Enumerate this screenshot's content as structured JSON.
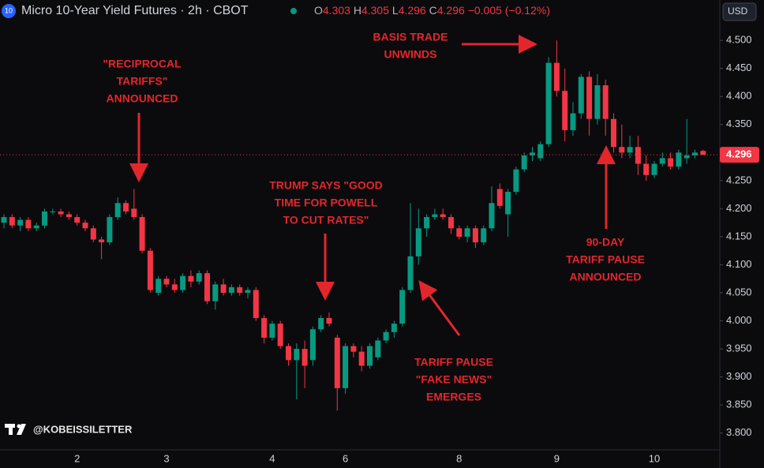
{
  "legend": {
    "symbol_badge": "10",
    "open_key": "O",
    "high_key": "H",
    "low_key": "L",
    "close_key": "C",
    "change": "−0.005 (−0.12%)",
    "currency": "USD",
    "watermark": "@KOBEISSILETTER"
  },
  "annotations": [
    {
      "lines": [
        "\"RECIPROCAL",
        "TARIFFS\"",
        "ANNOUNCED"
      ]
    },
    {
      "lines": [
        "BASIS TRADE",
        "UNWINDS"
      ]
    },
    {
      "lines": [
        "TRUMP SAYS \"GOOD",
        "TIME FOR POWELL",
        "TO CUT RATES\""
      ]
    },
    {
      "lines": [
        "TARIFF PAUSE",
        "\"FAKE NEWS\"",
        "EMERGES"
      ]
    },
    {
      "lines": [
        "90-DAY",
        "TARIFF PAUSE",
        "ANNOUNCED"
      ]
    }
  ],
  "chart_data": {
    "type": "candlestick",
    "title": "Micro 10-Year Yield Futures · 2h · CBOT",
    "categories": [
      null,
      null,
      null,
      null,
      null,
      null,
      null,
      null,
      null,
      "2",
      null,
      null,
      null,
      null,
      null,
      null,
      null,
      null,
      null,
      null,
      "3",
      null,
      null,
      null,
      null,
      null,
      null,
      null,
      null,
      null,
      null,
      null,
      null,
      "4",
      null,
      null,
      null,
      null,
      null,
      null,
      null,
      null,
      "6",
      null,
      null,
      null,
      null,
      null,
      null,
      null,
      null,
      null,
      null,
      null,
      null,
      null,
      "8",
      null,
      null,
      null,
      null,
      null,
      null,
      null,
      null,
      null,
      null,
      null,
      "9",
      null,
      null,
      null,
      null,
      null,
      null,
      null,
      null,
      null,
      null,
      null,
      "10",
      null,
      null,
      null,
      null,
      null,
      null
    ],
    "open": [
      4.175,
      4.185,
      4.17,
      4.18,
      4.165,
      4.17,
      4.195,
      4.195,
      4.19,
      4.185,
      4.175,
      4.165,
      4.145,
      4.14,
      4.185,
      4.21,
      4.2,
      4.185,
      4.125,
      4.05,
      4.075,
      4.065,
      4.055,
      4.08,
      4.07,
      4.085,
      4.035,
      4.065,
      4.05,
      4.06,
      4.05,
      4.055,
      4.005,
      3.97,
      3.995,
      3.955,
      3.93,
      3.95,
      3.93,
      3.985,
      4.005,
      3.97,
      3.88,
      3.955,
      3.945,
      3.92,
      3.935,
      3.965,
      3.98,
      3.995,
      4.055,
      4.115,
      4.165,
      4.185,
      4.19,
      4.185,
      4.165,
      4.15,
      4.165,
      4.14,
      4.165,
      4.235,
      4.19,
      4.23,
      4.27,
      4.295,
      4.29,
      4.315,
      4.46,
      4.41,
      4.34,
      4.37,
      4.435,
      4.36,
      4.42,
      4.36,
      4.31,
      4.3,
      4.31,
      4.28,
      4.26,
      4.28,
      4.29,
      4.275,
      4.29,
      4.295,
      4.303
    ],
    "high": [
      4.19,
      4.19,
      4.185,
      4.185,
      4.175,
      4.2,
      4.2,
      4.2,
      4.195,
      4.19,
      4.18,
      4.17,
      4.15,
      4.19,
      4.22,
      4.215,
      4.235,
      4.19,
      4.13,
      4.08,
      4.08,
      4.075,
      4.085,
      4.09,
      4.09,
      4.09,
      4.07,
      4.075,
      4.065,
      4.065,
      4.06,
      4.06,
      4.01,
      4.0,
      4.0,
      3.96,
      3.96,
      3.965,
      3.99,
      4.01,
      4.015,
      3.975,
      3.96,
      3.96,
      3.955,
      3.96,
      3.97,
      3.985,
      4.0,
      4.06,
      4.21,
      4.2,
      4.19,
      4.2,
      4.2,
      4.19,
      4.17,
      4.17,
      4.17,
      4.17,
      4.24,
      4.245,
      4.235,
      4.275,
      4.3,
      4.31,
      4.32,
      4.47,
      4.5,
      4.45,
      4.39,
      4.44,
      4.445,
      4.44,
      4.43,
      4.37,
      4.35,
      4.33,
      4.33,
      4.295,
      4.285,
      4.3,
      4.3,
      4.305,
      4.36,
      4.305,
      4.305
    ],
    "low": [
      4.165,
      4.165,
      4.16,
      4.16,
      4.16,
      4.165,
      4.19,
      4.185,
      4.18,
      4.17,
      4.16,
      4.14,
      4.11,
      4.135,
      4.18,
      4.19,
      4.18,
      4.12,
      4.05,
      4.045,
      4.06,
      4.05,
      4.05,
      4.06,
      4.065,
      4.03,
      4.02,
      4.045,
      4.045,
      4.045,
      4.04,
      4.0,
      3.96,
      3.965,
      3.95,
      3.92,
      3.86,
      3.88,
      3.92,
      3.98,
      3.99,
      3.84,
      3.87,
      3.935,
      3.91,
      3.915,
      3.93,
      3.96,
      3.97,
      3.99,
      4.05,
      4.1,
      4.15,
      4.18,
      4.18,
      4.155,
      4.145,
      4.14,
      4.13,
      4.135,
      4.16,
      4.2,
      4.15,
      4.225,
      4.265,
      4.285,
      4.285,
      4.31,
      4.4,
      4.32,
      4.33,
      4.36,
      4.33,
      4.35,
      4.33,
      4.3,
      4.29,
      4.29,
      4.26,
      4.25,
      4.255,
      4.275,
      4.27,
      4.27,
      4.28,
      4.29,
      4.296
    ],
    "close": [
      4.185,
      4.17,
      4.18,
      4.165,
      4.17,
      4.195,
      4.195,
      4.19,
      4.185,
      4.175,
      4.165,
      4.145,
      4.14,
      4.185,
      4.21,
      4.195,
      4.185,
      4.125,
      4.055,
      4.075,
      4.065,
      4.055,
      4.08,
      4.07,
      4.085,
      4.035,
      4.065,
      4.05,
      4.06,
      4.05,
      4.055,
      4.005,
      3.97,
      3.995,
      3.955,
      3.93,
      3.95,
      3.92,
      3.985,
      4.005,
      3.995,
      3.88,
      3.955,
      3.945,
      3.92,
      3.955,
      3.965,
      3.98,
      3.995,
      4.055,
      4.115,
      4.165,
      4.185,
      4.19,
      4.185,
      4.165,
      4.15,
      4.165,
      4.14,
      4.165,
      4.21,
      4.205,
      4.23,
      4.27,
      4.295,
      4.3,
      4.315,
      4.46,
      4.41,
      4.34,
      4.37,
      4.435,
      4.36,
      4.42,
      4.36,
      4.31,
      4.3,
      4.31,
      4.28,
      4.26,
      4.28,
      4.29,
      4.275,
      4.3,
      4.295,
      4.3,
      4.296
    ],
    "up_color": "#089981",
    "down_color": "#f23645",
    "ylim": [
      3.77,
      4.565
    ],
    "yticks": [
      {
        "value": 3.8,
        "label": "3.800"
      },
      {
        "value": 3.85,
        "label": "3.850"
      },
      {
        "value": 3.9,
        "label": "3.900"
      },
      {
        "value": 3.95,
        "label": "3.950"
      },
      {
        "value": 4.0,
        "label": "4.000"
      },
      {
        "value": 4.05,
        "label": "4.050"
      },
      {
        "value": 4.1,
        "label": "4.100"
      },
      {
        "value": 4.15,
        "label": "4.150"
      },
      {
        "value": 4.2,
        "label": "4.200"
      },
      {
        "value": 4.25,
        "label": "4.250"
      },
      {
        "value": 4.3,
        "label": "4.300"
      },
      {
        "value": 4.35,
        "label": "4.350"
      },
      {
        "value": 4.4,
        "label": "4.400"
      },
      {
        "value": 4.45,
        "label": "4.450"
      },
      {
        "value": 4.5,
        "label": "4.500"
      }
    ],
    "grid": false
  }
}
